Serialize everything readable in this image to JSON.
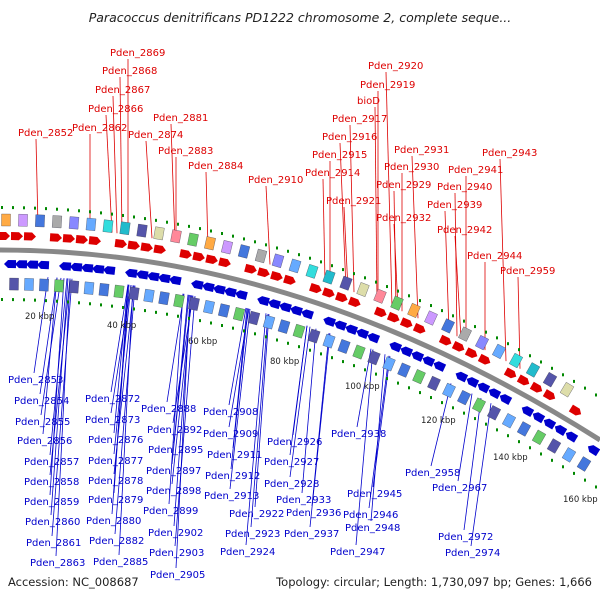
{
  "title": "Paracoccus denitrificans PD1222 chromosome 2, complete seque...",
  "accession": "Accession: NC_008687",
  "topology": "Topology: circular; Length: 1,730,097 bp; Genes: 1,666",
  "colors": {
    "forward": "#dd0000",
    "reverse": "#0000cc",
    "backbone": "#888888",
    "tick": "#008800"
  },
  "kbp_labels": [
    "20 kbp",
    "40 kbp",
    "60 kbp",
    "80 kbp",
    "100 kbp",
    "120 kbp",
    "140 kbp",
    "160 kbp"
  ],
  "forward_labels": [
    "Pden_2869",
    "Pden_2868",
    "Pden_2867",
    "Pden_2866",
    "Pden_2862",
    "Pden_2852",
    "Pden_2881",
    "Pden_2874",
    "Pden_2883",
    "Pden_2884",
    "Pden_2910",
    "Pden_2920",
    "Pden_2919",
    "bioD",
    "Pden_2917",
    "Pden_2916",
    "Pden_2915",
    "Pden_2914",
    "Pden_2921",
    "Pden_2931",
    "Pden_2930",
    "Pden_2929",
    "Pden_2932",
    "Pden_2943",
    "Pden_2941",
    "Pden_2940",
    "Pden_2939",
    "Pden_2942",
    "Pden_2944",
    "Pden_2959"
  ],
  "reverse_labels": [
    "Pden_2853",
    "Pden_2854",
    "Pden_2855",
    "Pden_2856",
    "Pden_2857",
    "Pden_2858",
    "Pden_2859",
    "Pden_2860",
    "Pden_2861",
    "Pden_2863",
    "Pden_2872",
    "Pden_2873",
    "Pden_2876",
    "Pden_2877",
    "Pden_2878",
    "Pden_2879",
    "Pden_2880",
    "Pden_2882",
    "Pden_2885",
    "Pden_2888",
    "Pden_2892",
    "Pden_2895",
    "Pden_2897",
    "Pden_2898",
    "Pden_2899",
    "Pden_2902",
    "Pden_2903",
    "Pden_2905",
    "Pden_2908",
    "Pden_2909",
    "Pden_2911",
    "Pden_2912",
    "Pden_2913",
    "Pden_2922",
    "Pden_2923",
    "Pden_2924",
    "Pden_2926",
    "Pden_2927",
    "Pden_2928",
    "Pden_2933",
    "Pden_2936",
    "Pden_2937",
    "Pden_2938",
    "Pden_2945",
    "Pden_2946",
    "Pden_2948",
    "Pden_2947",
    "Pden_2958",
    "Pden_2967",
    "Pden_2972",
    "Pden_2974"
  ]
}
